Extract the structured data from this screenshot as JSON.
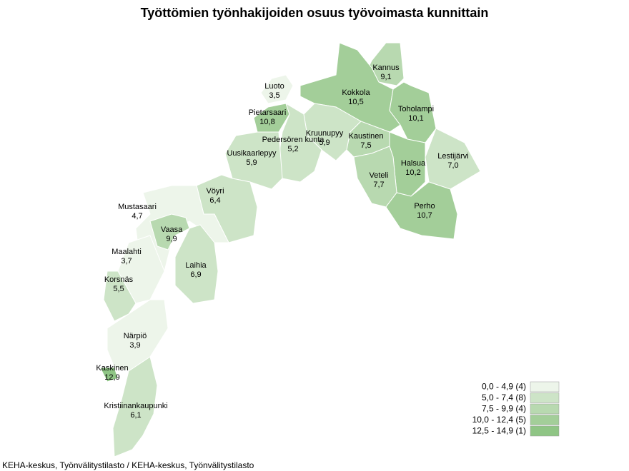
{
  "title": "Työttömien työnhakijoiden osuus työvoimasta kunnittain",
  "regions": [
    {
      "name": "Kannus",
      "value": 9.1,
      "label": "9,1"
    },
    {
      "name": "Luoto",
      "value": 3.5,
      "label": "3,5"
    },
    {
      "name": "Kokkola",
      "value": 10.5,
      "label": "10,5"
    },
    {
      "name": "Toholampi",
      "value": 10.1,
      "label": "10,1"
    },
    {
      "name": "Pietarsaari",
      "value": 10.8,
      "label": "10,8"
    },
    {
      "name": "Kruunupyy",
      "value": 5.9,
      "label": "5,9"
    },
    {
      "name": "Pedersören kunta",
      "value": 5.2,
      "label": "5,2"
    },
    {
      "name": "Kaustinen",
      "value": 7.5,
      "label": "7,5"
    },
    {
      "name": "Uusikaarlepyy",
      "value": 5.9,
      "label": "5,9"
    },
    {
      "name": "Lestijärvi",
      "value": 7.0,
      "label": "7,0"
    },
    {
      "name": "Halsua",
      "value": 10.2,
      "label": "10,2"
    },
    {
      "name": "Veteli",
      "value": 7.7,
      "label": "7,7"
    },
    {
      "name": "Vöyri",
      "value": 6.4,
      "label": "6,4"
    },
    {
      "name": "Mustasaari",
      "value": 4.7,
      "label": "4,7"
    },
    {
      "name": "Perho",
      "value": 10.7,
      "label": "10,7"
    },
    {
      "name": "Vaasa",
      "value": 9.9,
      "label": "9,9"
    },
    {
      "name": "Maalahti",
      "value": 3.7,
      "label": "3,7"
    },
    {
      "name": "Laihia",
      "value": 6.9,
      "label": "6,9"
    },
    {
      "name": "Korsnäs",
      "value": 5.5,
      "label": "5,5"
    },
    {
      "name": "Närpiö",
      "value": 3.9,
      "label": "3,9"
    },
    {
      "name": "Kaskinen",
      "value": 12.9,
      "label": "12,9"
    },
    {
      "name": "Kristiinankaupunki",
      "value": 6.1,
      "label": "6,1"
    }
  ],
  "legend": [
    {
      "min": 0.0,
      "max": 4.9,
      "count": 4,
      "label": "0,0 - 4,9 (4)",
      "color": "#edf5ea"
    },
    {
      "min": 5.0,
      "max": 7.4,
      "count": 8,
      "label": "5,0 - 7,4 (8)",
      "color": "#cde4c7"
    },
    {
      "min": 7.5,
      "max": 9.9,
      "count": 4,
      "label": "7,5 - 9,9 (4)",
      "color": "#b8d9b0"
    },
    {
      "min": 10.0,
      "max": 12.4,
      "count": 5,
      "label": "10,0 - 12,4 (5)",
      "color": "#a3ce99"
    },
    {
      "min": 12.5,
      "max": 14.9,
      "count": 1,
      "label": "12,5 - 14,9 (1)",
      "color": "#8fc585"
    }
  ],
  "source": "KEHA-keskus, Työnvälitystilasto / KEHA-keskus, Työnvälitystilasto"
}
